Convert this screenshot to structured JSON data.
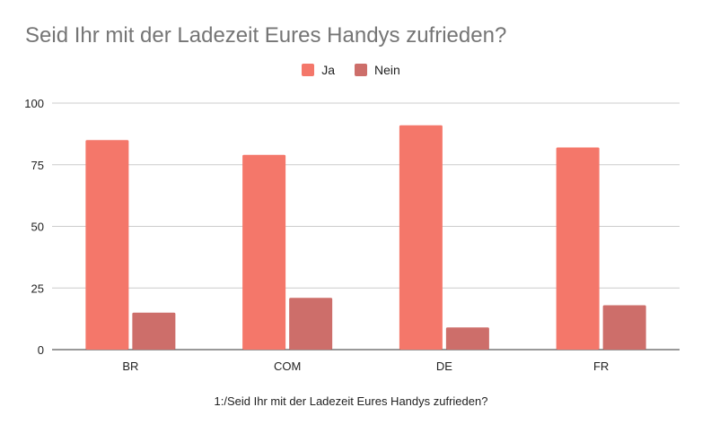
{
  "chart_data": {
    "type": "bar",
    "title": "Seid Ihr mit der Ladezeit Eures Handys zufrieden?",
    "xlabel": "1:/Seid Ihr mit der Ladezeit Eures Handys zufrieden?",
    "ylabel": "",
    "categories": [
      "BR",
      "COM",
      "DE",
      "FR"
    ],
    "series": [
      {
        "name": "Ja",
        "values": [
          85,
          79,
          91,
          82
        ],
        "color": "#f4776a"
      },
      {
        "name": "Nein",
        "values": [
          15,
          21,
          9,
          18
        ],
        "color": "#cd6e6a"
      }
    ],
    "ylim": [
      0,
      100
    ],
    "yticks": [
      "0",
      "25",
      "50",
      "75",
      "100"
    ],
    "grid": true,
    "legend_position": "top-center"
  }
}
